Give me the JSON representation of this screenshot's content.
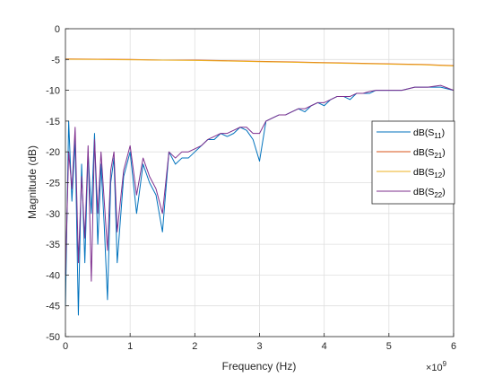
{
  "chart_data": {
    "type": "line",
    "title": "",
    "xlabel": "Frequency (Hz)",
    "ylabel": "Magnitude (dB)",
    "x_exponent_label": "×10",
    "x_exponent": "9",
    "xlim": [
      0,
      6
    ],
    "ylim": [
      -50,
      0
    ],
    "xticks": [
      0,
      1,
      2,
      3,
      4,
      5,
      6
    ],
    "yticks": [
      0,
      -5,
      -10,
      -15,
      -20,
      -25,
      -30,
      -35,
      -40,
      -45,
      -50
    ],
    "grid": true,
    "legend_position": "right",
    "series": [
      {
        "name": "dB(S11)",
        "legend_base": "dB(S",
        "legend_sub": "11",
        "legend_close": ")",
        "color": "#0072BD",
        "x": [
          0.0,
          0.05,
          0.1,
          0.15,
          0.2,
          0.25,
          0.3,
          0.35,
          0.4,
          0.45,
          0.5,
          0.55,
          0.6,
          0.65,
          0.7,
          0.75,
          0.8,
          0.9,
          1.0,
          1.1,
          1.2,
          1.3,
          1.4,
          1.5,
          1.6,
          1.7,
          1.8,
          1.9,
          2.0,
          2.1,
          2.2,
          2.3,
          2.4,
          2.5,
          2.6,
          2.7,
          2.8,
          2.9,
          3.0,
          3.1,
          3.2,
          3.3,
          3.4,
          3.5,
          3.6,
          3.7,
          3.8,
          3.9,
          4.0,
          4.1,
          4.2,
          4.3,
          4.4,
          4.5,
          4.6,
          4.7,
          4.8,
          4.9,
          5.0,
          5.2,
          5.4,
          5.6,
          5.8,
          6.0
        ],
        "y": [
          -45,
          -15,
          -28,
          -18,
          -46.5,
          -22,
          -38,
          -20,
          -30,
          -17,
          -35,
          -22,
          -32,
          -44,
          -25,
          -21,
          -38,
          -24,
          -20,
          -30,
          -22,
          -25,
          -27,
          -33,
          -20,
          -22,
          -21,
          -21,
          -20,
          -19,
          -18,
          -18,
          -17,
          -17.5,
          -17,
          -16,
          -16.5,
          -18,
          -21.5,
          -15,
          -14.5,
          -14,
          -14,
          -13.5,
          -13,
          -13.5,
          -12.5,
          -12,
          -12.5,
          -11.5,
          -11,
          -11,
          -11.5,
          -10.5,
          -10.5,
          -10.5,
          -10,
          -10,
          -10,
          -10,
          -9.5,
          -9.5,
          -9.5,
          -10
        ]
      },
      {
        "name": "dB(S21)",
        "legend_base": "dB(S",
        "legend_sub": "21",
        "legend_close": ")",
        "color": "#D95319",
        "x": [
          0,
          0.5,
          1,
          1.5,
          2,
          2.5,
          3,
          3.5,
          4,
          4.5,
          5,
          5.5,
          6
        ],
        "y": [
          -4.9,
          -4.95,
          -5.0,
          -5.1,
          -5.1,
          -5.2,
          -5.3,
          -5.4,
          -5.5,
          -5.6,
          -5.7,
          -5.8,
          -6.0
        ]
      },
      {
        "name": "dB(S12)",
        "legend_base": "dB(S",
        "legend_sub": "12",
        "legend_close": ")",
        "color": "#EDB120",
        "x": [
          0,
          0.5,
          1,
          1.5,
          2,
          2.5,
          3,
          3.5,
          4,
          4.5,
          5,
          5.5,
          6
        ],
        "y": [
          -4.95,
          -5.0,
          -5.05,
          -5.1,
          -5.15,
          -5.25,
          -5.35,
          -5.45,
          -5.55,
          -5.65,
          -5.75,
          -5.85,
          -6.05
        ]
      },
      {
        "name": "dB(S22)",
        "legend_base": "dB(S",
        "legend_sub": "22",
        "legend_close": ")",
        "color": "#7E2F8E",
        "x": [
          0.0,
          0.05,
          0.1,
          0.15,
          0.2,
          0.25,
          0.3,
          0.35,
          0.4,
          0.45,
          0.5,
          0.55,
          0.6,
          0.65,
          0.7,
          0.75,
          0.8,
          0.9,
          1.0,
          1.1,
          1.2,
          1.3,
          1.4,
          1.5,
          1.6,
          1.7,
          1.8,
          1.9,
          2.0,
          2.1,
          2.2,
          2.3,
          2.4,
          2.5,
          2.6,
          2.7,
          2.8,
          2.9,
          3.0,
          3.1,
          3.2,
          3.3,
          3.4,
          3.5,
          3.6,
          3.7,
          3.8,
          3.9,
          4.0,
          4.1,
          4.2,
          4.3,
          4.4,
          4.5,
          4.6,
          4.7,
          4.8,
          4.9,
          5.0,
          5.2,
          5.4,
          5.6,
          5.8,
          6.0
        ],
        "y": [
          -40,
          -20,
          -26,
          -16,
          -38,
          -24,
          -34,
          -19,
          -41,
          -18,
          -30,
          -20,
          -28,
          -36,
          -23,
          -20,
          -33,
          -23,
          -19,
          -27,
          -21,
          -24,
          -26,
          -30,
          -20,
          -21,
          -20,
          -20,
          -19.5,
          -19,
          -18,
          -17.5,
          -17,
          -17,
          -16.5,
          -16,
          -16,
          -17,
          -17,
          -15,
          -14.5,
          -14,
          -14,
          -13.5,
          -13,
          -13,
          -12.5,
          -12,
          -12,
          -11.5,
          -11,
          -11,
          -11,
          -10.5,
          -10.5,
          -10.2,
          -10,
          -10,
          -10,
          -10,
          -9.5,
          -9.5,
          -9.2,
          -10
        ]
      }
    ]
  }
}
